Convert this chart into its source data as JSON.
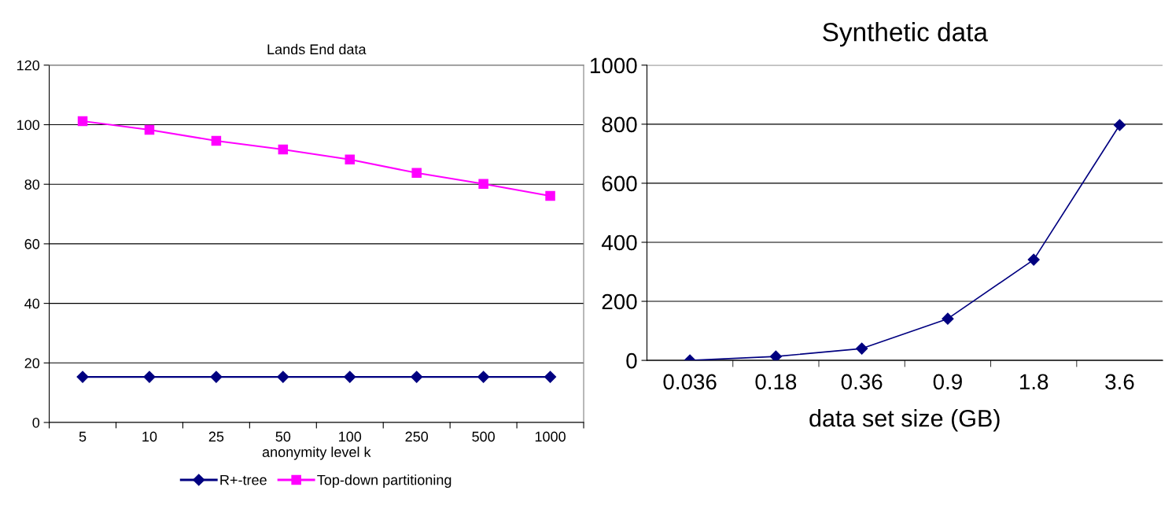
{
  "chart_data": [
    {
      "type": "line",
      "title": "Lands End data",
      "xlabel": "anonymity level k",
      "categories": [
        "5",
        "10",
        "25",
        "50",
        "100",
        "250",
        "500",
        "1000"
      ],
      "series": [
        {
          "name": "R+-tree",
          "color": "#000080",
          "marker": "diamond",
          "values": [
            15.3,
            15.3,
            15.3,
            15.3,
            15.3,
            15.3,
            15.3,
            15.3
          ]
        },
        {
          "name": "Top-down partitioning",
          "color": "#ff00ff",
          "marker": "square",
          "values": [
            101.2,
            98.3,
            94.6,
            91.7,
            88.3,
            83.8,
            80.1,
            76.1
          ]
        }
      ],
      "ylim": [
        0,
        120
      ],
      "yticks": [
        0,
        20,
        40,
        60,
        80,
        100,
        120
      ],
      "grid": "y",
      "legend": "bottom"
    },
    {
      "type": "line",
      "title": "Synthetic data",
      "xlabel": "data set size (GB)",
      "categories": [
        "0.036",
        "0.18",
        "0.36",
        "0.9",
        "1.8",
        "3.6"
      ],
      "series": [
        {
          "color": "#000080",
          "marker": "diamond",
          "values": [
            0,
            13,
            40,
            141,
            341,
            797
          ]
        }
      ],
      "ylim": [
        0,
        1000
      ],
      "yticks": [
        0,
        200,
        400,
        600,
        800,
        1000
      ],
      "grid": "y",
      "legend": false
    }
  ]
}
